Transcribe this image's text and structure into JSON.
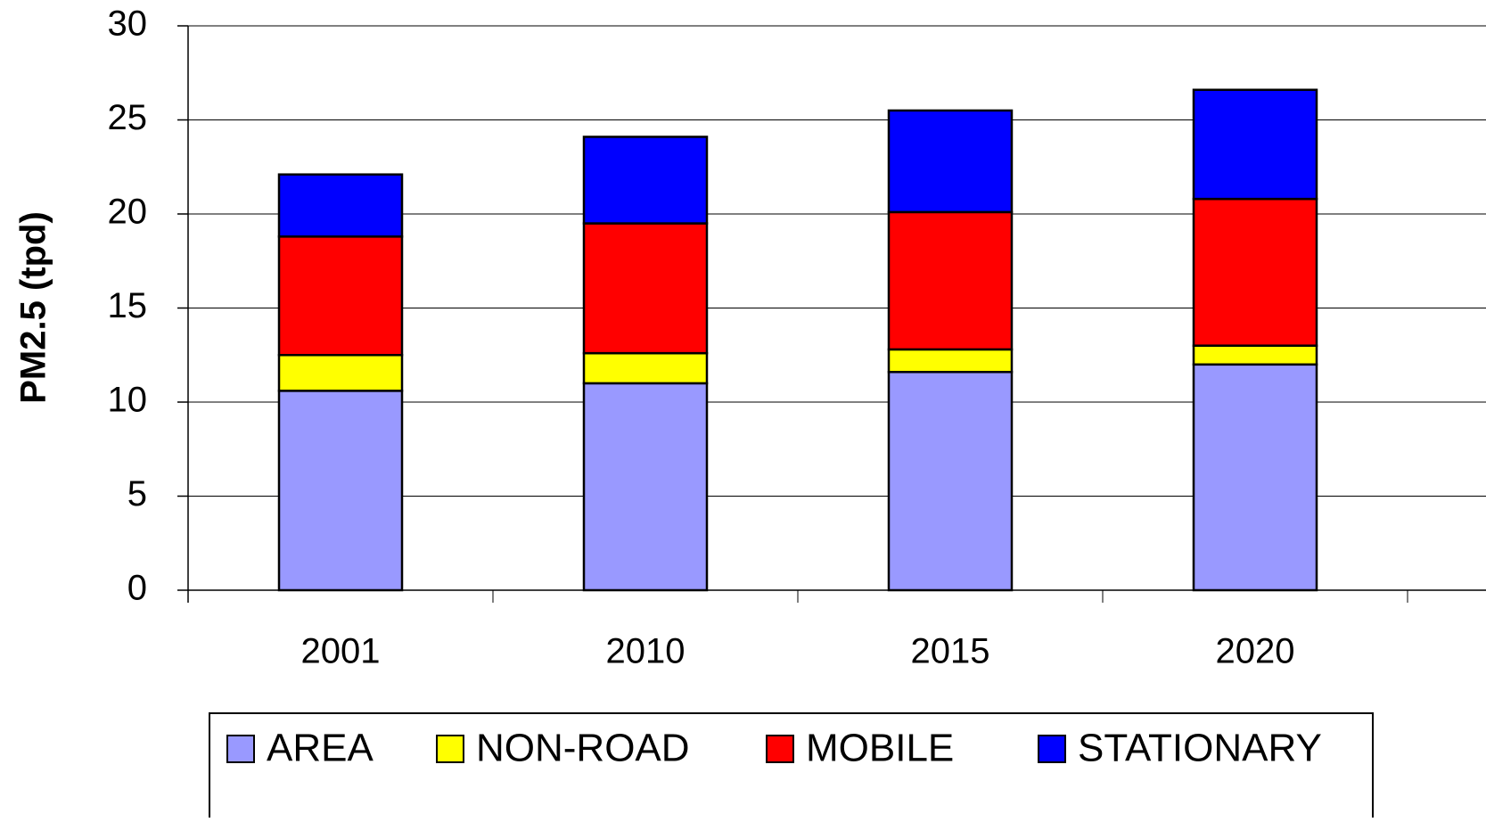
{
  "chart_data": {
    "type": "stacked_bar",
    "y_label": "PM2.5 (tpd)",
    "categories": [
      "2001",
      "2010",
      "2015",
      "2020"
    ],
    "series": [
      {
        "name": "AREA",
        "color": "#9999ff",
        "values": [
          10.6,
          11.0,
          11.6,
          12.0
        ]
      },
      {
        "name": "NON-ROAD",
        "color": "#ffff00",
        "values": [
          1.9,
          1.6,
          1.2,
          1.0
        ]
      },
      {
        "name": "MOBILE",
        "color": "#ff0000",
        "values": [
          6.3,
          6.9,
          7.3,
          7.8
        ]
      },
      {
        "name": "STATIONARY",
        "color": "#0000ff",
        "values": [
          3.3,
          4.6,
          5.4,
          5.8
        ]
      }
    ],
    "ylim": [
      0,
      30
    ],
    "yticks": [
      0,
      5,
      10,
      15,
      20,
      25,
      30
    ],
    "grid": true
  }
}
